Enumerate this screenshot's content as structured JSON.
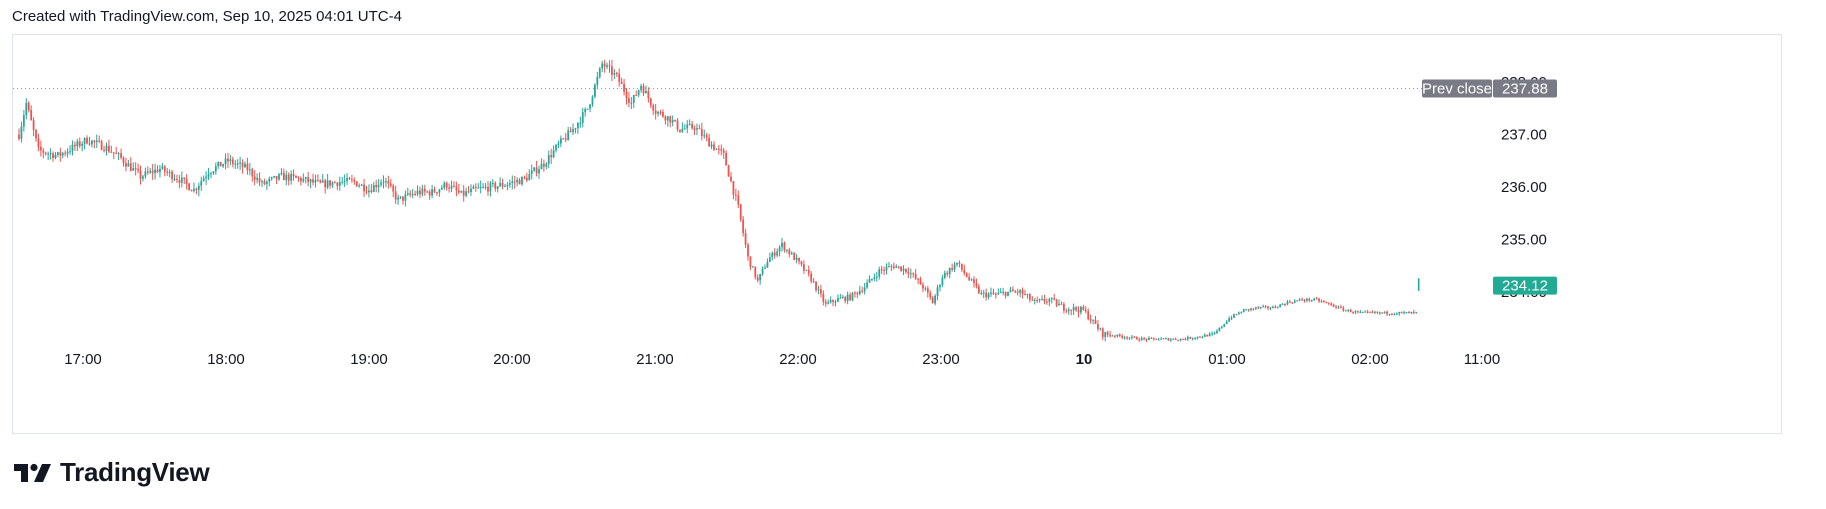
{
  "header": {
    "created_text": "Created with TradingView.com, Sep 10, 2025 04:01 UTC-4"
  },
  "brand": {
    "name": "TradingView",
    "icon": "tradingview-logo-icon"
  },
  "colors": {
    "up": "#26a69a",
    "down": "#ef5350",
    "prev_close_badge": "#787b86",
    "last_price_badge": "#22ab94",
    "grid": "#e0e3eb",
    "dotted_line": "#9598a1"
  },
  "chart_data": {
    "type": "candlestick",
    "x_ticks": [
      {
        "label": "17:00",
        "bold": false
      },
      {
        "label": "18:00",
        "bold": false
      },
      {
        "label": "19:00",
        "bold": false
      },
      {
        "label": "20:00",
        "bold": false
      },
      {
        "label": "21:00",
        "bold": false
      },
      {
        "label": "22:00",
        "bold": false
      },
      {
        "label": "23:00",
        "bold": false
      },
      {
        "label": "10",
        "bold": true
      },
      {
        "label": "01:00",
        "bold": false
      },
      {
        "label": "02:00",
        "bold": false
      },
      {
        "label": "11:00",
        "bold": false
      }
    ],
    "y_ticks": [
      "238.00",
      "237.00",
      "236.00",
      "235.00",
      "234.00"
    ],
    "y_tick_values": [
      238,
      237,
      236,
      235,
      234
    ],
    "ylim": [
      232.95,
      238.9
    ],
    "prev_close": {
      "label": "Prev close",
      "value": "237.88"
    },
    "last_price": "234.12",
    "path": [
      [
        0,
        237.0
      ],
      [
        3,
        237.6
      ],
      [
        8,
        236.7
      ],
      [
        16,
        236.6
      ],
      [
        22,
        236.75
      ],
      [
        28,
        236.9
      ],
      [
        36,
        236.75
      ],
      [
        42,
        236.55
      ],
      [
        50,
        236.2
      ],
      [
        58,
        236.35
      ],
      [
        66,
        236.15
      ],
      [
        72,
        235.95
      ],
      [
        78,
        236.3
      ],
      [
        86,
        236.5
      ],
      [
        94,
        236.35
      ],
      [
        100,
        236.05
      ],
      [
        108,
        236.2
      ],
      [
        116,
        236.15
      ],
      [
        124,
        236.05
      ],
      [
        132,
        236.1
      ],
      [
        138,
        236.1
      ],
      [
        144,
        235.95
      ],
      [
        150,
        236.15
      ],
      [
        156,
        235.75
      ],
      [
        164,
        235.9
      ],
      [
        170,
        235.9
      ],
      [
        176,
        236.05
      ],
      [
        182,
        235.85
      ],
      [
        188,
        235.95
      ],
      [
        194,
        236.0
      ],
      [
        200,
        236.05
      ],
      [
        208,
        236.15
      ],
      [
        216,
        236.45
      ],
      [
        222,
        236.8
      ],
      [
        228,
        237.1
      ],
      [
        234,
        237.5
      ],
      [
        240,
        238.35
      ],
      [
        246,
        238.1
      ],
      [
        252,
        237.6
      ],
      [
        256,
        237.95
      ],
      [
        262,
        237.45
      ],
      [
        268,
        237.3
      ],
      [
        272,
        237.1
      ],
      [
        278,
        237.15
      ],
      [
        284,
        236.85
      ],
      [
        290,
        236.6
      ],
      [
        296,
        235.6
      ],
      [
        300,
        234.65
      ],
      [
        304,
        234.2
      ],
      [
        308,
        234.6
      ],
      [
        314,
        234.9
      ],
      [
        320,
        234.6
      ],
      [
        326,
        234.25
      ],
      [
        332,
        233.75
      ],
      [
        336,
        233.85
      ],
      [
        342,
        233.9
      ],
      [
        348,
        234.1
      ],
      [
        354,
        234.4
      ],
      [
        360,
        234.5
      ],
      [
        366,
        234.4
      ],
      [
        372,
        234.1
      ],
      [
        376,
        233.8
      ],
      [
        380,
        234.3
      ],
      [
        386,
        234.55
      ],
      [
        390,
        234.3
      ],
      [
        396,
        233.95
      ],
      [
        402,
        233.95
      ],
      [
        408,
        234.0
      ],
      [
        412,
        234.0
      ],
      [
        418,
        233.8
      ],
      [
        424,
        233.85
      ],
      [
        430,
        233.7
      ],
      [
        438,
        233.65
      ],
      [
        446,
        233.2
      ],
      [
        454,
        233.15
      ],
      [
        462,
        233.1
      ],
      [
        470,
        233.1
      ],
      [
        478,
        233.1
      ],
      [
        486,
        233.15
      ],
      [
        492,
        233.2
      ],
      [
        498,
        233.5
      ],
      [
        504,
        233.65
      ],
      [
        510,
        233.7
      ],
      [
        516,
        233.7
      ],
      [
        522,
        233.8
      ],
      [
        528,
        233.85
      ],
      [
        534,
        233.85
      ],
      [
        540,
        233.75
      ],
      [
        546,
        233.65
      ],
      [
        552,
        233.6
      ],
      [
        558,
        233.6
      ],
      [
        564,
        233.6
      ],
      [
        570,
        233.6
      ],
      [
        575,
        233.6
      ],
      [
        576,
        234.12
      ]
    ],
    "max_x": 600
  }
}
